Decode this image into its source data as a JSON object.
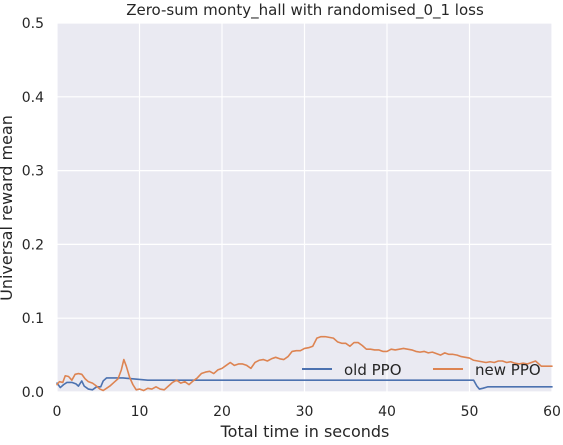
{
  "chart_data": {
    "type": "line",
    "title": "Zero-sum monty_hall with randomised_0_1 loss",
    "xlabel": "Total time in seconds",
    "ylabel": "Universal reward mean",
    "xlim": [
      0,
      60
    ],
    "ylim": [
      0,
      0.5
    ],
    "xticks": [
      0,
      10,
      20,
      30,
      40,
      50,
      60
    ],
    "yticks": [
      0.0,
      0.1,
      0.2,
      0.3,
      0.4,
      0.5
    ],
    "xtick_labels": [
      "0",
      "10",
      "20",
      "30",
      "40",
      "50",
      "60"
    ],
    "ytick_labels": [
      "0.0",
      "0.1",
      "0.2",
      "0.3",
      "0.4",
      "0.5"
    ],
    "grid": true,
    "legend_position": "lower-right",
    "colors": {
      "background": "#eaeaf2",
      "grid": "#ffffff",
      "old_ppo": "#4c72b0",
      "new_ppo": "#dd8452"
    },
    "series": [
      {
        "name": "old PPO",
        "color": "#4c72b0",
        "points": [
          [
            0.0,
            0.012
          ],
          [
            0.4,
            0.006
          ],
          [
            0.8,
            0.01
          ],
          [
            1.2,
            0.013
          ],
          [
            1.8,
            0.013
          ],
          [
            2.3,
            0.011
          ],
          [
            2.6,
            0.008
          ],
          [
            3.0,
            0.015
          ],
          [
            3.3,
            0.008
          ],
          [
            3.8,
            0.004
          ],
          [
            4.3,
            0.003
          ],
          [
            4.8,
            0.007
          ],
          [
            5.3,
            0.007
          ],
          [
            5.6,
            0.015
          ],
          [
            6.0,
            0.019
          ],
          [
            7.0,
            0.019
          ],
          [
            8.0,
            0.019
          ],
          [
            9.0,
            0.018
          ],
          [
            10.0,
            0.017
          ],
          [
            11.0,
            0.016
          ],
          [
            13.0,
            0.016
          ],
          [
            16.0,
            0.016
          ],
          [
            20.0,
            0.016
          ],
          [
            25.0,
            0.016
          ],
          [
            30.0,
            0.016
          ],
          [
            35.0,
            0.016
          ],
          [
            40.0,
            0.016
          ],
          [
            45.0,
            0.016
          ],
          [
            50.5,
            0.016
          ],
          [
            50.9,
            0.008
          ],
          [
            51.2,
            0.004
          ],
          [
            51.6,
            0.005
          ],
          [
            52.2,
            0.007
          ],
          [
            55.0,
            0.007
          ],
          [
            60.0,
            0.007
          ]
        ]
      },
      {
        "name": "new PPO",
        "color": "#dd8452",
        "points": [
          [
            0.0,
            0.01
          ],
          [
            0.3,
            0.014
          ],
          [
            0.7,
            0.013
          ],
          [
            1.0,
            0.022
          ],
          [
            1.4,
            0.021
          ],
          [
            1.8,
            0.016
          ],
          [
            2.2,
            0.024
          ],
          [
            2.6,
            0.025
          ],
          [
            3.0,
            0.024
          ],
          [
            3.4,
            0.018
          ],
          [
            3.8,
            0.014
          ],
          [
            4.3,
            0.012
          ],
          [
            4.8,
            0.008
          ],
          [
            5.2,
            0.004
          ],
          [
            5.6,
            0.002
          ],
          [
            6.0,
            0.005
          ],
          [
            6.4,
            0.008
          ],
          [
            6.9,
            0.013
          ],
          [
            7.4,
            0.018
          ],
          [
            7.8,
            0.03
          ],
          [
            8.1,
            0.044
          ],
          [
            8.4,
            0.035
          ],
          [
            8.8,
            0.02
          ],
          [
            9.2,
            0.01
          ],
          [
            9.6,
            0.003
          ],
          [
            10.0,
            0.004
          ],
          [
            10.5,
            0.002
          ],
          [
            11.0,
            0.005
          ],
          [
            11.5,
            0.004
          ],
          [
            12.0,
            0.007
          ],
          [
            12.5,
            0.004
          ],
          [
            13.0,
            0.003
          ],
          [
            13.5,
            0.008
          ],
          [
            14.0,
            0.013
          ],
          [
            14.5,
            0.016
          ],
          [
            15.0,
            0.012
          ],
          [
            15.5,
            0.014
          ],
          [
            16.0,
            0.01
          ],
          [
            16.5,
            0.015
          ],
          [
            17.0,
            0.019
          ],
          [
            17.5,
            0.025
          ],
          [
            18.0,
            0.027
          ],
          [
            18.5,
            0.028
          ],
          [
            19.0,
            0.025
          ],
          [
            19.5,
            0.03
          ],
          [
            20.0,
            0.032
          ],
          [
            20.5,
            0.036
          ],
          [
            21.0,
            0.04
          ],
          [
            21.5,
            0.036
          ],
          [
            22.0,
            0.038
          ],
          [
            22.5,
            0.038
          ],
          [
            23.0,
            0.036
          ],
          [
            23.5,
            0.032
          ],
          [
            24.0,
            0.04
          ],
          [
            24.5,
            0.043
          ],
          [
            25.0,
            0.044
          ],
          [
            25.5,
            0.042
          ],
          [
            26.0,
            0.045
          ],
          [
            26.5,
            0.047
          ],
          [
            27.0,
            0.045
          ],
          [
            27.5,
            0.044
          ],
          [
            28.0,
            0.048
          ],
          [
            28.5,
            0.055
          ],
          [
            29.0,
            0.056
          ],
          [
            29.5,
            0.056
          ],
          [
            30.0,
            0.059
          ],
          [
            30.5,
            0.06
          ],
          [
            31.0,
            0.062
          ],
          [
            31.5,
            0.073
          ],
          [
            32.0,
            0.075
          ],
          [
            32.5,
            0.075
          ],
          [
            33.0,
            0.074
          ],
          [
            33.5,
            0.073
          ],
          [
            34.0,
            0.068
          ],
          [
            34.5,
            0.066
          ],
          [
            35.0,
            0.066
          ],
          [
            35.5,
            0.062
          ],
          [
            36.0,
            0.067
          ],
          [
            36.5,
            0.067
          ],
          [
            37.0,
            0.063
          ],
          [
            37.5,
            0.058
          ],
          [
            38.0,
            0.058
          ],
          [
            38.5,
            0.057
          ],
          [
            39.0,
            0.057
          ],
          [
            39.5,
            0.055
          ],
          [
            40.0,
            0.055
          ],
          [
            40.5,
            0.058
          ],
          [
            41.0,
            0.057
          ],
          [
            41.5,
            0.058
          ],
          [
            42.0,
            0.059
          ],
          [
            42.5,
            0.058
          ],
          [
            43.0,
            0.057
          ],
          [
            43.5,
            0.055
          ],
          [
            44.0,
            0.054
          ],
          [
            44.5,
            0.055
          ],
          [
            45.0,
            0.053
          ],
          [
            45.5,
            0.054
          ],
          [
            46.0,
            0.052
          ],
          [
            46.5,
            0.05
          ],
          [
            47.0,
            0.053
          ],
          [
            47.5,
            0.051
          ],
          [
            48.0,
            0.051
          ],
          [
            48.5,
            0.05
          ],
          [
            49.0,
            0.048
          ],
          [
            49.5,
            0.047
          ],
          [
            50.0,
            0.046
          ],
          [
            50.5,
            0.043
          ],
          [
            51.0,
            0.042
          ],
          [
            51.5,
            0.041
          ],
          [
            52.0,
            0.04
          ],
          [
            52.5,
            0.041
          ],
          [
            53.0,
            0.04
          ],
          [
            53.5,
            0.042
          ],
          [
            54.0,
            0.042
          ],
          [
            54.5,
            0.04
          ],
          [
            55.0,
            0.041
          ],
          [
            55.5,
            0.039
          ],
          [
            56.0,
            0.038
          ],
          [
            56.5,
            0.039
          ],
          [
            57.0,
            0.038
          ],
          [
            57.5,
            0.04
          ],
          [
            58.0,
            0.042
          ],
          [
            58.4,
            0.038
          ],
          [
            58.7,
            0.035
          ],
          [
            59.0,
            0.035
          ],
          [
            60.0,
            0.035
          ]
        ]
      }
    ]
  }
}
